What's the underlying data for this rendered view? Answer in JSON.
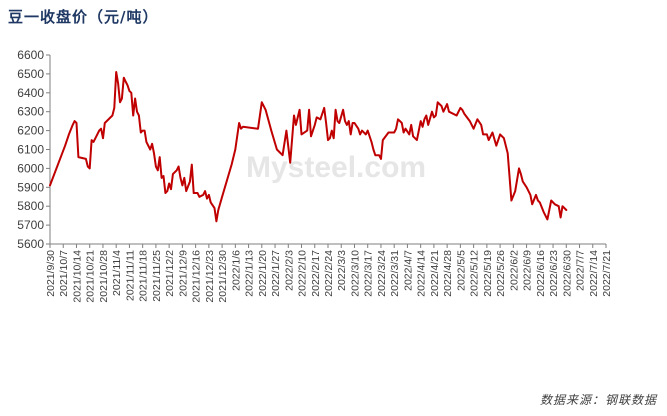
{
  "title": "豆一收盘价（元/吨）",
  "source": "数据来源：钢联数据",
  "watermark": "Mysteel.com",
  "colors": {
    "line": "#c00000",
    "axis": "#7f7f7f",
    "title": "#1f3864"
  },
  "chart_data": {
    "type": "line",
    "title": "豆一收盘价（元/吨）",
    "ylim": [
      5600,
      6600
    ],
    "yticks": [
      5600,
      5700,
      5800,
      5900,
      6000,
      6100,
      6200,
      6300,
      6400,
      6500,
      6600
    ],
    "xlim": [
      "2021-09-30",
      "2022-07-21"
    ],
    "grid": false,
    "x_tick_labels": [
      "2021/9/30",
      "2021/10/7",
      "2021/10/14",
      "2021/10/21",
      "2021/10/28",
      "2021/11/4",
      "2021/11/11",
      "2021/11/18",
      "2021/11/25",
      "2021/12/2",
      "2021/12/9",
      "2021/12/16",
      "2021/12/23",
      "2021/12/30",
      "2022/1/6",
      "2022/1/13",
      "2022/1/20",
      "2022/1/27",
      "2022/2/3",
      "2022/2/10",
      "2022/2/17",
      "2022/2/24",
      "2022/3/3",
      "2022/3/10",
      "2022/3/17",
      "2022/3/24",
      "2022/3/31",
      "2022/4/7",
      "2022/4/14",
      "2022/4/21",
      "2022/4/28",
      "2022/5/5",
      "2022/5/12",
      "2022/5/19",
      "2022/5/26",
      "2022/6/2",
      "2022/6/9",
      "2022/6/16",
      "2022/6/23",
      "2022/6/30",
      "2022/7/7",
      "2022/7/14",
      "2022/7/21"
    ],
    "series": [
      {
        "points": [
          [
            "2021-09-30",
            5910
          ],
          [
            "2021-10-08",
            6120
          ],
          [
            "2021-10-10",
            6180
          ],
          [
            "2021-10-12",
            6230
          ],
          [
            "2021-10-13",
            6250
          ],
          [
            "2021-10-14",
            6240
          ],
          [
            "2021-10-15",
            6060
          ],
          [
            "2021-10-19",
            6050
          ],
          [
            "2021-10-20",
            6010
          ],
          [
            "2021-10-21",
            6000
          ],
          [
            "2021-10-22",
            6150
          ],
          [
            "2021-10-23",
            6140
          ],
          [
            "2021-10-25",
            6180
          ],
          [
            "2021-10-26",
            6200
          ],
          [
            "2021-10-27",
            6210
          ],
          [
            "2021-10-28",
            6160
          ],
          [
            "2021-10-29",
            6240
          ],
          [
            "2021-11-01",
            6270
          ],
          [
            "2021-11-02",
            6280
          ],
          [
            "2021-11-03",
            6320
          ],
          [
            "2021-11-04",
            6510
          ],
          [
            "2021-11-05",
            6450
          ],
          [
            "2021-11-06",
            6350
          ],
          [
            "2021-11-07",
            6370
          ],
          [
            "2021-11-08",
            6480
          ],
          [
            "2021-11-09",
            6460
          ],
          [
            "2021-11-10",
            6440
          ],
          [
            "2021-11-11",
            6410
          ],
          [
            "2021-11-12",
            6400
          ],
          [
            "2021-11-13",
            6280
          ],
          [
            "2021-11-14",
            6370
          ],
          [
            "2021-11-15",
            6300
          ],
          [
            "2021-11-16",
            6280
          ],
          [
            "2021-11-17",
            6190
          ],
          [
            "2021-11-18",
            6200
          ],
          [
            "2021-11-19",
            6200
          ],
          [
            "2021-11-20",
            6140
          ],
          [
            "2021-11-22",
            6100
          ],
          [
            "2021-11-23",
            6130
          ],
          [
            "2021-11-24",
            6080
          ],
          [
            "2021-11-25",
            6010
          ],
          [
            "2021-11-26",
            5990
          ],
          [
            "2021-11-27",
            6060
          ],
          [
            "2021-11-28",
            5950
          ],
          [
            "2021-11-29",
            5960
          ],
          [
            "2021-11-30",
            5870
          ],
          [
            "2021-12-01",
            5880
          ],
          [
            "2021-12-02",
            5920
          ],
          [
            "2021-12-03",
            5890
          ],
          [
            "2021-12-04",
            5970
          ],
          [
            "2021-12-06",
            5990
          ],
          [
            "2021-12-07",
            6010
          ],
          [
            "2021-12-08",
            5950
          ],
          [
            "2021-12-09",
            5910
          ],
          [
            "2021-12-10",
            5950
          ],
          [
            "2021-12-11",
            5880
          ],
          [
            "2021-12-13",
            5930
          ],
          [
            "2021-12-14",
            6020
          ],
          [
            "2021-12-15",
            5870
          ],
          [
            "2021-12-17",
            5870
          ],
          [
            "2021-12-18",
            5850
          ],
          [
            "2021-12-20",
            5860
          ],
          [
            "2021-12-21",
            5880
          ],
          [
            "2021-12-22",
            5840
          ],
          [
            "2021-12-23",
            5860
          ],
          [
            "2021-12-24",
            5820
          ],
          [
            "2021-12-26",
            5790
          ],
          [
            "2021-12-27",
            5720
          ],
          [
            "2021-12-28",
            5780
          ],
          [
            "2021-12-30",
            5850
          ],
          [
            "2022-01-04",
            6020
          ],
          [
            "2022-01-06",
            6100
          ],
          [
            "2022-01-08",
            6240
          ],
          [
            "2022-01-09",
            6210
          ],
          [
            "2022-01-10",
            6220
          ],
          [
            "2022-01-18",
            6210
          ],
          [
            "2022-01-20",
            6350
          ],
          [
            "2022-01-22",
            6310
          ],
          [
            "2022-01-25",
            6200
          ],
          [
            "2022-01-28",
            6100
          ],
          [
            "2022-01-31",
            6070
          ],
          [
            "2022-02-02",
            6200
          ],
          [
            "2022-02-04",
            6030
          ],
          [
            "2022-02-06",
            6280
          ],
          [
            "2022-02-07",
            6230
          ],
          [
            "2022-02-09",
            6310
          ],
          [
            "2022-02-10",
            6180
          ],
          [
            "2022-02-13",
            6200
          ],
          [
            "2022-02-14",
            6310
          ],
          [
            "2022-02-15",
            6170
          ],
          [
            "2022-02-17",
            6230
          ],
          [
            "2022-02-18",
            6270
          ],
          [
            "2022-02-20",
            6260
          ],
          [
            "2022-02-22",
            6320
          ],
          [
            "2022-02-23",
            6240
          ],
          [
            "2022-02-24",
            6150
          ],
          [
            "2022-02-25",
            6160
          ],
          [
            "2022-02-26",
            6200
          ],
          [
            "2022-02-27",
            6160
          ],
          [
            "2022-02-28",
            6310
          ],
          [
            "2022-03-01",
            6250
          ],
          [
            "2022-03-02",
            6240
          ],
          [
            "2022-03-04",
            6310
          ],
          [
            "2022-03-05",
            6250
          ],
          [
            "2022-03-06",
            6230
          ],
          [
            "2022-03-07",
            6250
          ],
          [
            "2022-03-08",
            6180
          ],
          [
            "2022-03-09",
            6240
          ],
          [
            "2022-03-10",
            6240
          ],
          [
            "2022-03-12",
            6210
          ],
          [
            "2022-03-13",
            6180
          ],
          [
            "2022-03-14",
            6200
          ],
          [
            "2022-03-16",
            6180
          ],
          [
            "2022-03-17",
            6200
          ],
          [
            "2022-03-19",
            6140
          ],
          [
            "2022-03-20",
            6100
          ],
          [
            "2022-03-21",
            6070
          ],
          [
            "2022-03-23",
            6070
          ],
          [
            "2022-03-24",
            6050
          ],
          [
            "2022-03-25",
            6150
          ],
          [
            "2022-03-28",
            6190
          ],
          [
            "2022-03-31",
            6190
          ],
          [
            "2022-04-01",
            6210
          ],
          [
            "2022-04-02",
            6260
          ],
          [
            "2022-04-03",
            6250
          ],
          [
            "2022-04-04",
            6240
          ],
          [
            "2022-04-05",
            6190
          ],
          [
            "2022-04-06",
            6210
          ],
          [
            "2022-04-08",
            6180
          ],
          [
            "2022-04-09",
            6230
          ],
          [
            "2022-04-10",
            6170
          ],
          [
            "2022-04-12",
            6150
          ],
          [
            "2022-04-14",
            6250
          ],
          [
            "2022-04-15",
            6220
          ],
          [
            "2022-04-16",
            6260
          ],
          [
            "2022-04-17",
            6280
          ],
          [
            "2022-04-18",
            6230
          ],
          [
            "2022-04-20",
            6300
          ],
          [
            "2022-04-21",
            6270
          ],
          [
            "2022-04-22",
            6280
          ],
          [
            "2022-04-23",
            6350
          ],
          [
            "2022-04-25",
            6330
          ],
          [
            "2022-04-26",
            6300
          ],
          [
            "2022-04-28",
            6340
          ],
          [
            "2022-04-29",
            6300
          ],
          [
            "2022-05-03",
            6280
          ],
          [
            "2022-05-05",
            6320
          ],
          [
            "2022-05-06",
            6310
          ],
          [
            "2022-05-07",
            6290
          ],
          [
            "2022-05-10",
            6250
          ],
          [
            "2022-05-12",
            6210
          ],
          [
            "2022-05-14",
            6260
          ],
          [
            "2022-05-16",
            6230
          ],
          [
            "2022-05-17",
            6180
          ],
          [
            "2022-05-19",
            6180
          ],
          [
            "2022-05-20",
            6150
          ],
          [
            "2022-05-22",
            6190
          ],
          [
            "2022-05-24",
            6120
          ],
          [
            "2022-05-26",
            6180
          ],
          [
            "2022-05-28",
            6160
          ],
          [
            "2022-05-30",
            6080
          ],
          [
            "2022-06-01",
            5830
          ],
          [
            "2022-06-03",
            5880
          ],
          [
            "2022-06-05",
            6000
          ],
          [
            "2022-06-06",
            5970
          ],
          [
            "2022-06-07",
            5930
          ],
          [
            "2022-06-09",
            5900
          ],
          [
            "2022-06-11",
            5860
          ],
          [
            "2022-06-12",
            5810
          ],
          [
            "2022-06-14",
            5860
          ],
          [
            "2022-06-15",
            5830
          ],
          [
            "2022-06-16",
            5820
          ],
          [
            "2022-06-18",
            5770
          ],
          [
            "2022-06-20",
            5730
          ],
          [
            "2022-06-22",
            5830
          ],
          [
            "2022-06-24",
            5810
          ],
          [
            "2022-06-26",
            5800
          ],
          [
            "2022-06-27",
            5740
          ],
          [
            "2022-06-28",
            5800
          ],
          [
            "2022-06-30",
            5780
          ]
        ]
      }
    ]
  }
}
